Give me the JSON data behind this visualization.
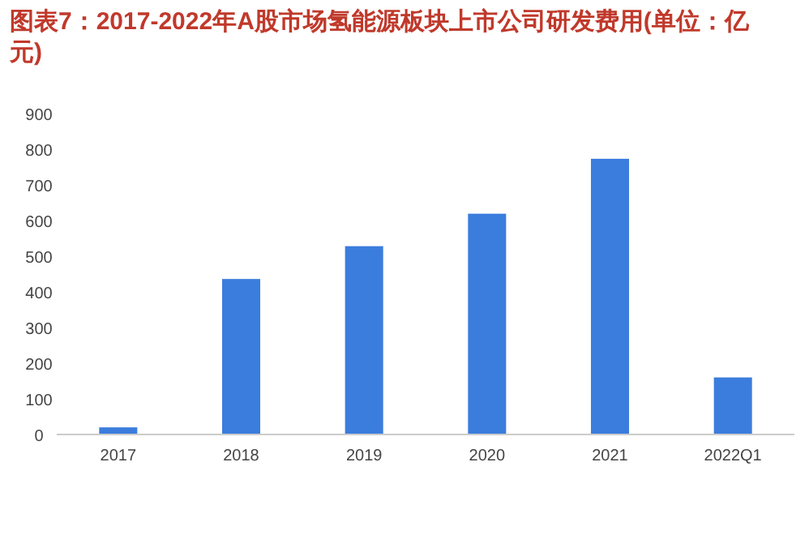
{
  "chart_data": {
    "type": "bar",
    "title": "图表7：2017-2022年A股市场氢能源板块上市公司研发费用(单位：亿元)",
    "categories": [
      "2017",
      "2018",
      "2019",
      "2020",
      "2021",
      "2022Q1"
    ],
    "values": [
      20,
      436,
      528,
      619,
      773,
      160
    ],
    "color": "#3b7ddd",
    "ylim": [
      0,
      900
    ],
    "yticks": [
      0,
      100,
      200,
      300,
      400,
      500,
      600,
      700,
      800,
      900
    ],
    "grid": false
  }
}
